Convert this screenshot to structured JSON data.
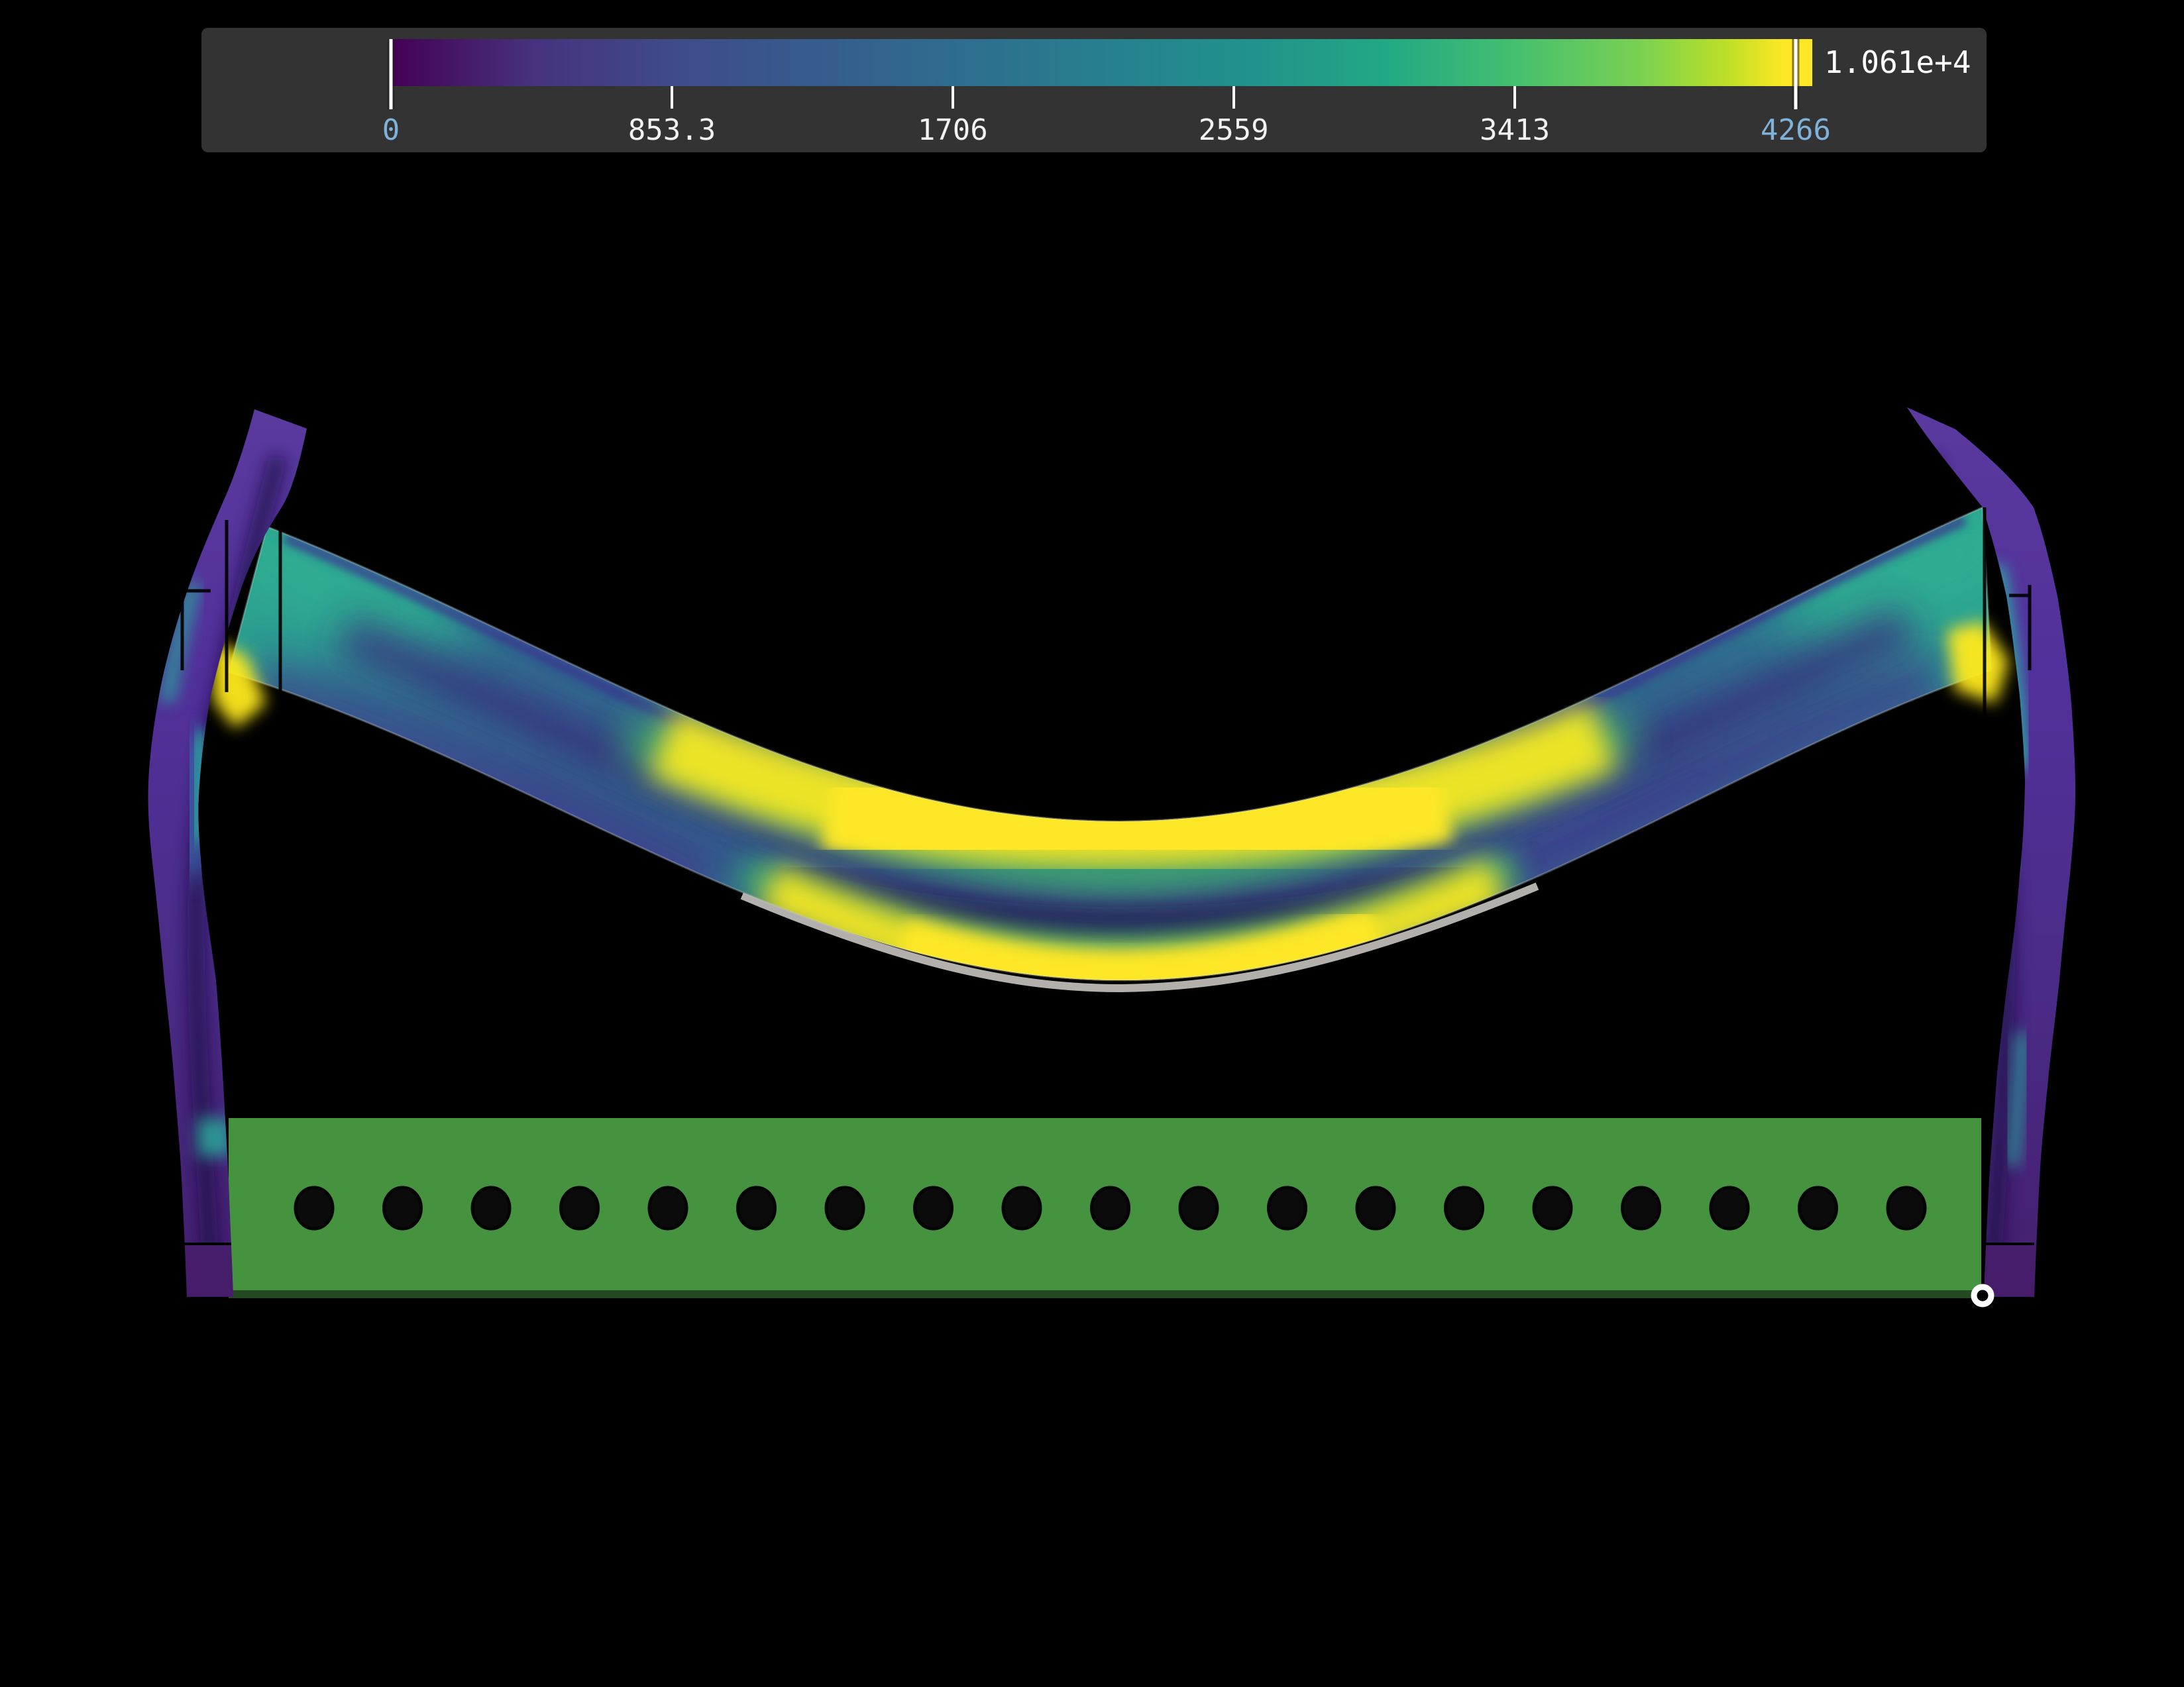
{
  "colorbar": {
    "panel_color": "#333333",
    "colormap": "viridis",
    "bar_gradient_stops": [
      [
        "0%",
        "#440154"
      ],
      [
        "10%",
        "#46327e"
      ],
      [
        "20%",
        "#3f4b8b"
      ],
      [
        "30%",
        "#365c8d"
      ],
      [
        "40%",
        "#2e6d8e"
      ],
      [
        "50%",
        "#277f8e"
      ],
      [
        "60%",
        "#21918c"
      ],
      [
        "70%",
        "#22a884"
      ],
      [
        "79%",
        "#44bf70"
      ],
      [
        "88%",
        "#7ad151"
      ],
      [
        "94%",
        "#bddf26"
      ],
      [
        "98%",
        "#fde725"
      ],
      [
        "100%",
        "#fde725"
      ]
    ],
    "range": {
      "min": 0,
      "max": 4266
    },
    "ticks": [
      {
        "label": "0",
        "value": 0,
        "major": true,
        "highlighted": true
      },
      {
        "label": "853.3",
        "value": 853.3,
        "major": false,
        "highlighted": false
      },
      {
        "label": "1706",
        "value": 1706,
        "major": false,
        "highlighted": false
      },
      {
        "label": "2559",
        "value": 2559,
        "major": false,
        "highlighted": false
      },
      {
        "label": "3413",
        "value": 3413,
        "major": false,
        "highlighted": false
      },
      {
        "label": "4266",
        "value": 4266,
        "major": true,
        "highlighted": true
      }
    ],
    "above_range_label": "1.061e+4",
    "label_color": "#f2f2f2",
    "highlight_color": "#7fb2d9",
    "tick_color": "#ffffff"
  },
  "scene": {
    "background_color": "#000000",
    "belt": {
      "description": "deformed shell colored by stress field (viridis)",
      "edge_fiber_color": "#fde725",
      "neutral_axis_color": "#241060",
      "anchor_hotspot_color": "#ffe91e"
    },
    "left_support": {
      "color": "#4f2d92",
      "accent_color": "#2aa29a"
    },
    "right_support": {
      "color": "#4f2d92",
      "accent_color": "#29b3a5"
    },
    "base_plate": {
      "color": "#45923f",
      "hole_count": 19,
      "hole_color": "#0b0b0b"
    },
    "picked_point_marker": {
      "color": "#ffffff"
    }
  },
  "chart_data": {
    "type": "heatmap",
    "title": "",
    "colormap": "viridis",
    "legend_position": "top",
    "colorbar_ticks": [
      0,
      853.3,
      1706,
      2559,
      3413,
      4266
    ],
    "colorbar_tick_labels": [
      "0",
      "853.3",
      "1706",
      "2559",
      "3413",
      "4266"
    ],
    "color_limits": [
      0,
      4266
    ],
    "data_max": 10610,
    "data_max_label": "1.061e+4",
    "highlighted_tick_labels": [
      "0",
      "4266"
    ],
    "grid": false
  }
}
